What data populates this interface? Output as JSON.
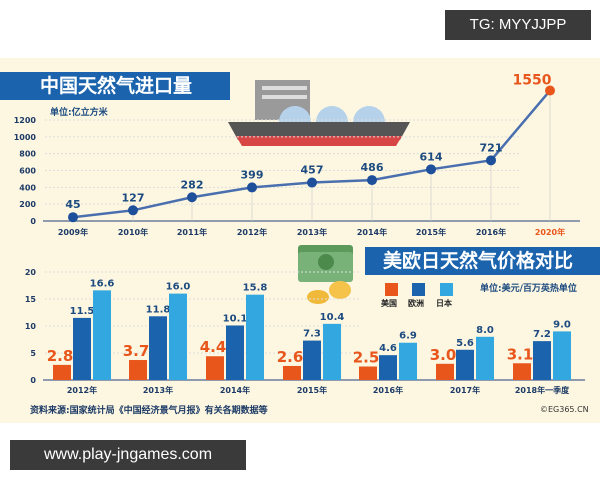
{
  "watermark_top": "TG: MYYJJPP",
  "watermark_bottom": "www.play-jngames.com",
  "source": "资料来源:国家统计局《中国经济景气月报》有关各期数据等",
  "copyright": "©EG365.CN",
  "colors": {
    "title_bar": "#1b64ad",
    "line": "#4a6fae",
    "point": "#1e4f9a",
    "us": "#e8561c",
    "europe": "#1b64ad",
    "japan": "#33a8e0",
    "background": "#fdf7e2"
  },
  "icons": [
    "lng-ship-icon",
    "money-stack-icon",
    "coins-icon"
  ],
  "chart_data": [
    {
      "type": "line",
      "title": "中国天然气进口量",
      "unit": "单位:亿立方米",
      "categories": [
        "2009年",
        "2010年",
        "2011年",
        "2012年",
        "2013年",
        "2014年",
        "2015年",
        "2016年",
        "2020年"
      ],
      "values": [
        45,
        127,
        282,
        399,
        457,
        486,
        614,
        721,
        1550
      ],
      "value_labels": [
        "45",
        "127",
        "282",
        "399",
        "457",
        "486",
        "614",
        "721",
        "1550"
      ],
      "yticks": [
        "0",
        "200",
        "400",
        "600",
        "800",
        "1000",
        "1200"
      ],
      "ylim": [
        0,
        1200
      ],
      "grid": true
    },
    {
      "type": "bar",
      "title": "美欧日天然气价格对比",
      "unit": "单位:美元/百万英热单位",
      "categories": [
        "2012年",
        "2013年",
        "2014年",
        "2015年",
        "2016年",
        "2017年",
        "2018年一季度"
      ],
      "series": [
        {
          "name": "美国",
          "values": [
            2.8,
            3.7,
            4.4,
            2.6,
            2.5,
            3.0,
            3.1
          ],
          "labels": [
            "2.8",
            "3.7",
            "4.4",
            "2.6",
            "2.5",
            "3.0",
            "3.1"
          ]
        },
        {
          "name": "欧洲",
          "values": [
            11.5,
            11.8,
            10.1,
            7.3,
            4.6,
            5.6,
            7.2
          ],
          "labels": [
            "11.5",
            "11.8",
            "10.1",
            "7.3",
            "4.6",
            "5.6",
            "7.2"
          ]
        },
        {
          "name": "日本",
          "values": [
            16.6,
            16.0,
            15.8,
            10.4,
            6.9,
            8.0,
            9.0
          ],
          "labels": [
            "16.6",
            "16.0",
            "15.8",
            "10.4",
            "6.9",
            "8.0",
            "9.0"
          ]
        }
      ],
      "yticks": [
        "0",
        "5",
        "10",
        "15",
        "20"
      ],
      "ylim": [
        0,
        20
      ],
      "legend": "top-right"
    }
  ]
}
